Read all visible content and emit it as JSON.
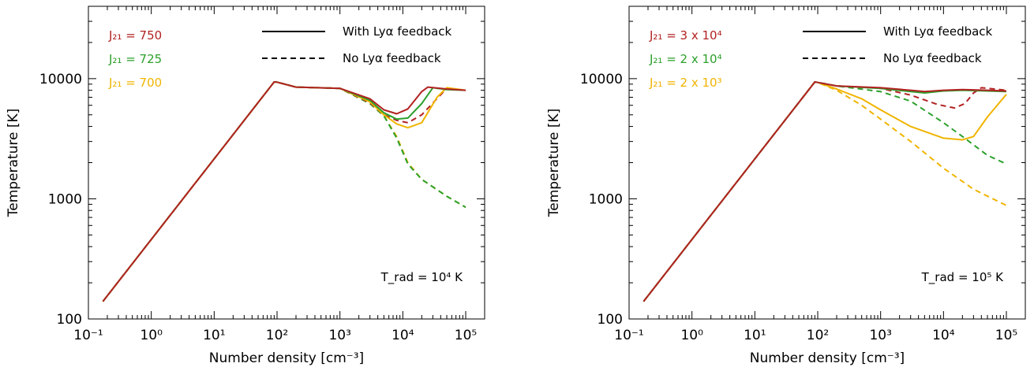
{
  "chart_data": [
    {
      "type": "line",
      "xlabel": "Number density [cm⁻³]",
      "ylabel": "Temperature [K]",
      "x_scale": "log",
      "y_scale": "log",
      "xlim": [
        0.1,
        200000
      ],
      "ylim": [
        100,
        40000
      ],
      "x_ticks": [
        "10⁻¹",
        "10⁰",
        "10¹",
        "10²",
        "10³",
        "10⁴",
        "10⁵"
      ],
      "y_ticks": [
        "100",
        "1000",
        "10000"
      ],
      "legend_entries": [
        {
          "label": "J₂₁ = 750",
          "color": "#b22222"
        },
        {
          "label": "J₂₁ = 725",
          "color": "#2ca02c"
        },
        {
          "label": "J₂₁ = 700",
          "color": "#f0b400"
        }
      ],
      "style_legend": [
        {
          "label": "With Lyα feedback",
          "dash": "solid"
        },
        {
          "label": "No Lyα feedback",
          "dash": "dashed"
        }
      ],
      "annotation": "T_rad = 10⁴ K",
      "series": [
        {
          "name": "J₂₁ = 700",
          "dash": "dashed",
          "color": "#f0b400",
          "x": [
            0.17,
            90,
            100,
            200,
            1000,
            3000,
            5000,
            8000,
            12000,
            20000,
            50000,
            100000
          ],
          "y": [
            140,
            9400,
            9350,
            8500,
            8300,
            6200,
            4900,
            3300,
            2000,
            1450,
            1050,
            850
          ]
        },
        {
          "name": "J₂₁ = 725",
          "dash": "dashed",
          "color": "#2ca02c",
          "x": [
            0.17,
            90,
            100,
            200,
            1000,
            3000,
            5000,
            8000,
            12000,
            20000,
            50000,
            100000
          ],
          "y": [
            140,
            9400,
            9350,
            8500,
            8300,
            6200,
            4900,
            3200,
            1950,
            1450,
            1050,
            850
          ]
        },
        {
          "name": "J₂₁ = 750",
          "dash": "dashed",
          "color": "#b22222",
          "x": [
            0.17,
            90,
            100,
            200,
            1000,
            3000,
            5000,
            8000,
            12000,
            20000,
            50000,
            100000
          ],
          "y": [
            140,
            9400,
            9350,
            8500,
            8300,
            6300,
            5000,
            4500,
            4300,
            5000,
            8300,
            8000
          ]
        },
        {
          "name": "J₂₁ = 700",
          "dash": "solid",
          "color": "#f0b400",
          "x": [
            0.17,
            90,
            100,
            200,
            1000,
            3000,
            5000,
            8000,
            12000,
            20000,
            35000,
            50000,
            100000
          ],
          "y": [
            140,
            9400,
            9350,
            8500,
            8300,
            6400,
            5000,
            4200,
            3900,
            4300,
            7000,
            8400,
            8000
          ]
        },
        {
          "name": "J₂₁ = 725",
          "dash": "solid",
          "color": "#2ca02c",
          "x": [
            0.17,
            90,
            100,
            200,
            1000,
            3000,
            5000,
            8000,
            12000,
            20000,
            30000,
            50000,
            100000
          ],
          "y": [
            140,
            9400,
            9350,
            8500,
            8300,
            6600,
            5200,
            4600,
            4700,
            6200,
            8400,
            8100,
            8000
          ]
        },
        {
          "name": "J₂₁ = 750",
          "dash": "solid",
          "color": "#b22222",
          "x": [
            0.17,
            90,
            100,
            200,
            1000,
            3000,
            5000,
            8000,
            12000,
            20000,
            25000,
            50000,
            100000
          ],
          "y": [
            140,
            9400,
            9350,
            8500,
            8300,
            6800,
            5500,
            5100,
            5600,
            7800,
            8500,
            8200,
            8000
          ]
        }
      ]
    },
    {
      "type": "line",
      "xlabel": "Number density [cm⁻³]",
      "ylabel": "Temperature [K]",
      "x_scale": "log",
      "y_scale": "log",
      "xlim": [
        0.1,
        200000
      ],
      "ylim": [
        100,
        40000
      ],
      "x_ticks": [
        "10⁻¹",
        "10⁰",
        "10¹",
        "10²",
        "10³",
        "10⁴",
        "10⁵"
      ],
      "y_ticks": [
        "100",
        "1000",
        "10000"
      ],
      "legend_entries": [
        {
          "label": "J₂₁ = 3 x 10⁴",
          "color": "#b22222"
        },
        {
          "label": "J₂₁ = 2 x 10⁴",
          "color": "#2ca02c"
        },
        {
          "label": "J₂₁ = 2 x 10³",
          "color": "#f0b400"
        }
      ],
      "style_legend": [
        {
          "label": "With Lyα feedback",
          "dash": "solid"
        },
        {
          "label": "No Lyα feedback",
          "dash": "dashed"
        }
      ],
      "annotation": "T_rad = 10⁵ K",
      "series": [
        {
          "name": "J₂₁ = 2 x 10³",
          "dash": "dashed",
          "color": "#f0b400",
          "x": [
            0.17,
            90,
            100,
            200,
            500,
            1000,
            3000,
            10000,
            30000,
            100000
          ],
          "y": [
            140,
            9400,
            9300,
            8000,
            6000,
            4600,
            3000,
            1800,
            1200,
            880
          ]
        },
        {
          "name": "J₂₁ = 2 x 10³",
          "dash": "solid",
          "color": "#f0b400",
          "x": [
            0.17,
            90,
            100,
            200,
            500,
            1000,
            3000,
            10000,
            20000,
            30000,
            50000,
            100000
          ],
          "y": [
            140,
            9400,
            9300,
            8200,
            6800,
            5500,
            4000,
            3200,
            3100,
            3300,
            4800,
            7400
          ]
        },
        {
          "name": "J₂₁ = 2 x 10⁴",
          "dash": "dashed",
          "color": "#2ca02c",
          "x": [
            0.17,
            90,
            100,
            200,
            1000,
            3000,
            10000,
            20000,
            50000,
            100000
          ],
          "y": [
            140,
            9400,
            9300,
            8700,
            7800,
            6500,
            4300,
            3300,
            2300,
            1950
          ]
        },
        {
          "name": "J₂₁ = 3 x 10⁴",
          "dash": "dashed",
          "color": "#b22222",
          "x": [
            0.17,
            90,
            100,
            200,
            1000,
            3000,
            8000,
            15000,
            22000,
            30000,
            40000,
            100000
          ],
          "y": [
            140,
            9400,
            9300,
            8700,
            8300,
            7300,
            6100,
            5700,
            6200,
            7600,
            8400,
            8000
          ]
        },
        {
          "name": "J₂₁ = 2 x 10⁴",
          "dash": "solid",
          "color": "#2ca02c",
          "x": [
            0.17,
            90,
            100,
            200,
            1000,
            3000,
            5000,
            10000,
            20000,
            50000,
            100000
          ],
          "y": [
            140,
            9400,
            9300,
            8700,
            8300,
            7800,
            7600,
            7900,
            8000,
            7900,
            7800
          ]
        },
        {
          "name": "J₂₁ = 3 x 10⁴",
          "dash": "solid",
          "color": "#b22222",
          "x": [
            0.17,
            90,
            100,
            200,
            1000,
            3000,
            5000,
            10000,
            20000,
            50000,
            100000
          ],
          "y": [
            140,
            9400,
            9300,
            8700,
            8400,
            8000,
            7800,
            8000,
            8100,
            8000,
            7900
          ]
        }
      ]
    }
  ]
}
